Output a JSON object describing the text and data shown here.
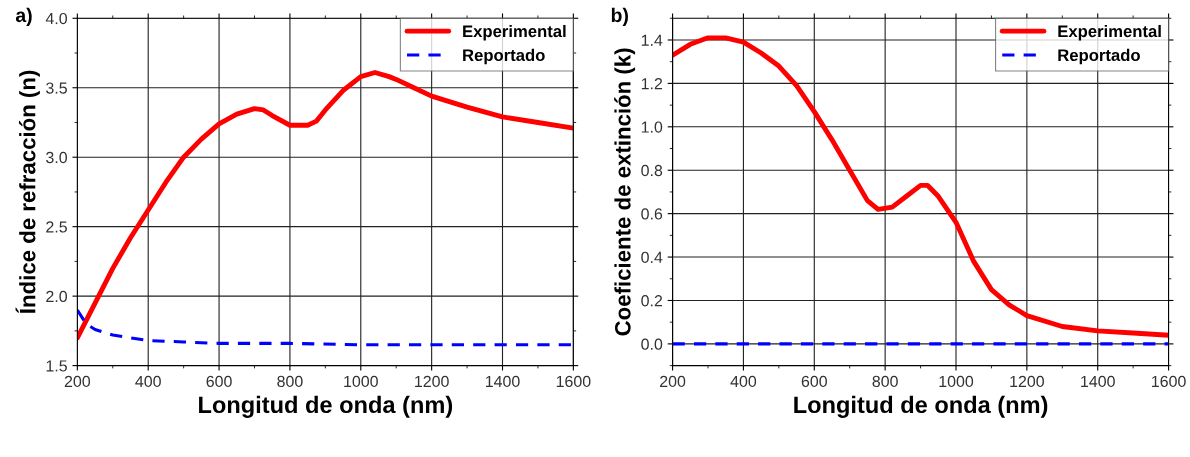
{
  "chart_data": [
    {
      "type": "line",
      "title": "a)",
      "xlabel": "Longitud de onda (nm)",
      "ylabel": "Índice de refracción (n)",
      "xlim": [
        200,
        1600
      ],
      "xticks": [
        200,
        400,
        600,
        800,
        1000,
        1200,
        1400,
        1600
      ],
      "ylim": [
        1.5,
        4.0
      ],
      "yticks": [
        1.5,
        {
          "value": 2.0,
          "label": "2.0"
        },
        2.5,
        {
          "value": 3.0,
          "label": "3.0"
        },
        3.5,
        {
          "value": 4.0,
          "label": "4.0"
        }
      ],
      "grid": true,
      "legend": "top right",
      "series": [
        {
          "name": "Experimental",
          "color": "#ff0000",
          "line_style": "solid",
          "x": [
            200,
            250,
            300,
            350,
            400,
            450,
            500,
            550,
            600,
            650,
            700,
            725,
            750,
            800,
            850,
            875,
            900,
            950,
            1000,
            1040,
            1080,
            1100,
            1150,
            1200,
            1300,
            1400,
            1500,
            1600
          ],
          "values": [
            1.7,
            1.95,
            2.2,
            2.42,
            2.62,
            2.82,
            3.0,
            3.13,
            3.24,
            3.31,
            3.35,
            3.34,
            3.3,
            3.23,
            3.23,
            3.26,
            3.34,
            3.48,
            3.58,
            3.61,
            3.58,
            3.56,
            3.5,
            3.44,
            3.36,
            3.29,
            3.25,
            3.21
          ]
        },
        {
          "name": "Reportado",
          "color": "#0000ff",
          "line_style": "dashed",
          "x": [
            200,
            225,
            250,
            300,
            350,
            400,
            500,
            600,
            800,
            1000,
            1200,
            1400,
            1600
          ],
          "values": [
            1.9,
            1.8,
            1.76,
            1.72,
            1.7,
            1.68,
            1.67,
            1.66,
            1.66,
            1.65,
            1.65,
            1.65,
            1.65
          ]
        }
      ]
    },
    {
      "type": "line",
      "title": "b)",
      "xlabel": "Longitud de onda (nm)",
      "ylabel": "Coeficiente de extinción (k)",
      "xlim": [
        200,
        1600
      ],
      "xticks": [
        200,
        400,
        600,
        800,
        1000,
        1200,
        1400,
        1600
      ],
      "ylim": [
        -0.1,
        1.5
      ],
      "yticks": [
        {
          "value": 0.0,
          "label": "0.0"
        },
        0.2,
        0.4,
        0.6,
        0.8,
        {
          "value": 1.0,
          "label": "1.0"
        },
        1.2,
        1.4
      ],
      "grid": true,
      "legend": "top right",
      "series": [
        {
          "name": "Experimental",
          "color": "#ff0000",
          "line_style": "solid",
          "x": [
            200,
            250,
            300,
            350,
            400,
            450,
            500,
            550,
            600,
            650,
            700,
            750,
            780,
            820,
            860,
            900,
            920,
            950,
            1000,
            1050,
            1100,
            1150,
            1200,
            1300,
            1400,
            1500,
            1600
          ],
          "values": [
            1.33,
            1.38,
            1.41,
            1.41,
            1.39,
            1.34,
            1.28,
            1.19,
            1.07,
            0.94,
            0.8,
            0.66,
            0.62,
            0.63,
            0.68,
            0.73,
            0.73,
            0.68,
            0.56,
            0.38,
            0.25,
            0.18,
            0.13,
            0.08,
            0.06,
            0.05,
            0.04
          ]
        },
        {
          "name": "Reportado",
          "color": "#0000ff",
          "line_style": "dashed",
          "x": [
            200,
            400,
            600,
            800,
            1000,
            1200,
            1400,
            1600
          ],
          "values": [
            0,
            0,
            0,
            0,
            0,
            0,
            0,
            0
          ]
        }
      ]
    }
  ]
}
